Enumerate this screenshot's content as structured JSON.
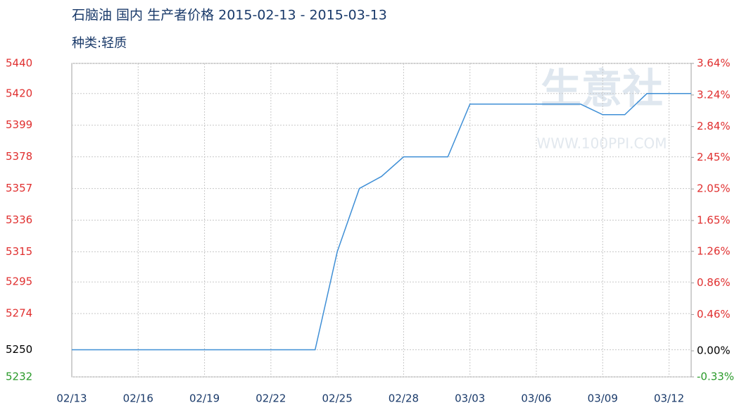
{
  "chart_data": {
    "type": "line",
    "title": "石脑油 国内 生产者价格 2015-02-13 - 2015-03-13",
    "subtitle": "种类:轻质",
    "watermark": "生意社",
    "watermark_url": "WWW.100PPI.COM",
    "categories": [
      "02/13",
      null,
      null,
      "02/16",
      null,
      null,
      "02/19",
      null,
      null,
      "02/22",
      null,
      null,
      "02/25",
      null,
      null,
      "02/28",
      null,
      null,
      "03/03",
      null,
      null,
      "03/06",
      null,
      null,
      "03/09",
      null,
      null,
      "03/12",
      null
    ],
    "values": [
      5250,
      5250,
      5250,
      5250,
      5250,
      5250,
      5250,
      5250,
      5250,
      5250,
      5250,
      5250,
      5315,
      5357,
      5365,
      5378,
      5378,
      5378,
      5413,
      5413,
      5413,
      5413,
      5413,
      5413,
      5406,
      5406,
      5420,
      5420,
      5420
    ],
    "color": "#3f8fd6",
    "ylim": [
      5232,
      5440
    ],
    "yticks": [
      5232,
      5250,
      5274,
      5295,
      5315,
      5336,
      5357,
      5378,
      5399,
      5420,
      5440
    ],
    "ytick_colors": [
      "#2a9a2a",
      "#000000",
      "#e03030",
      "#e03030",
      "#e03030",
      "#e03030",
      "#e03030",
      "#e03030",
      "#e03030",
      "#e03030",
      "#e03030"
    ],
    "y2lim": [
      -0.33,
      3.64
    ],
    "y2ticks": [
      {
        "value": -0.33,
        "label": "-0.33%"
      },
      {
        "value": 0,
        "label": "0.00%"
      },
      {
        "value": 0.46,
        "label": "0.46%"
      },
      {
        "value": 0.86,
        "label": "0.86%"
      },
      {
        "value": 1.26,
        "label": "1.26%"
      },
      {
        "value": 1.65,
        "label": "1.65%"
      },
      {
        "value": 2.05,
        "label": "2.05%"
      },
      {
        "value": 2.45,
        "label": "2.45%"
      },
      {
        "value": 2.84,
        "label": "2.84%"
      },
      {
        "value": 3.24,
        "label": "3.24%"
      },
      {
        "value": 3.64,
        "label": "3.64%"
      }
    ],
    "y2tick_colors": [
      "#2a9a2a",
      "#000000",
      "#e03030",
      "#e03030",
      "#e03030",
      "#e03030",
      "#e03030",
      "#e03030",
      "#e03030",
      "#e03030",
      "#e03030"
    ],
    "grid": true
  }
}
